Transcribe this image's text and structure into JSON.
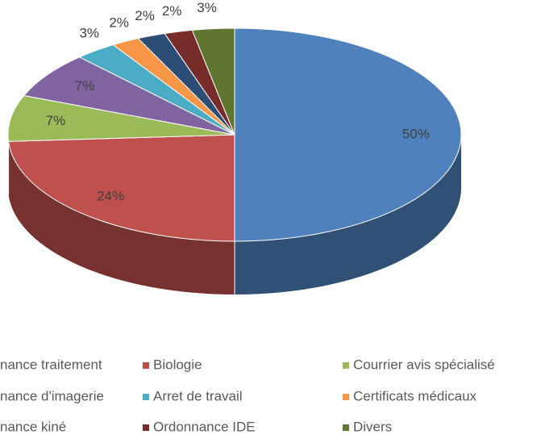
{
  "chart_data": {
    "type": "pie",
    "categories": [
      "nance traitement",
      "Biologie",
      "Courrier avis spécialisé",
      "nance d'imagerie",
      "Arret de travail",
      "Certificats médicaux",
      "nance kiné",
      "Ordonnance IDE",
      "Divers"
    ],
    "values": [
      50,
      24,
      7,
      7,
      3,
      2,
      2,
      2,
      3
    ],
    "value_labels": [
      "50%",
      "24%",
      "7%",
      "7%",
      "3%",
      "2%",
      "2%",
      "2%",
      "3%"
    ],
    "colors": [
      "#4f81bd",
      "#c0504d",
      "#9bbb59",
      "#8064a2",
      "#4bacc6",
      "#f79646",
      "#2c4d75",
      "#772c2a",
      "#5f7530"
    ],
    "legend": "bottom"
  }
}
